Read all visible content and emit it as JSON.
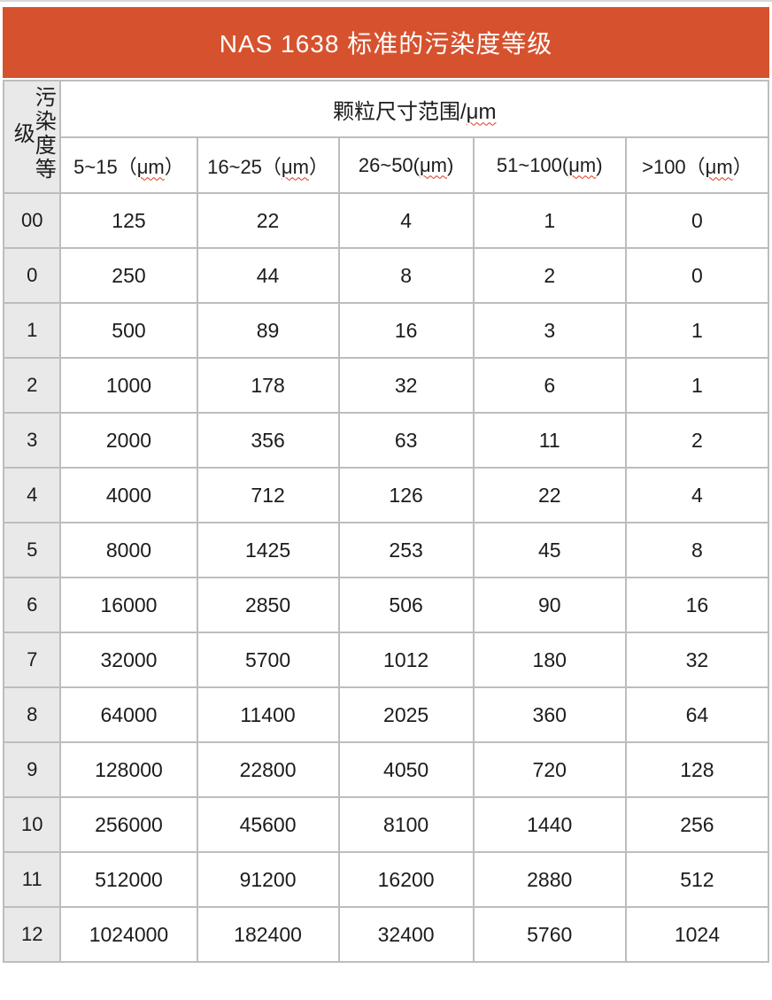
{
  "title": "NAS 1638 标准的污染度等级",
  "colors": {
    "header_bg": "#d6522e",
    "header_text": "#ffffff",
    "label_bg": "#e9e9e9",
    "border": "#bdbdbd",
    "text": "#1c1c1c",
    "squiggle_red": "#e0351f"
  },
  "table": {
    "corner_header": "污染度等级",
    "group_header": {
      "pre": "颗粒尺寸范围/",
      "um": "μm",
      "post": ""
    },
    "size_headers": [
      {
        "pre": "5~15（",
        "um": "μm",
        "post": "）"
      },
      {
        "pre": "16~25（",
        "um": "μm",
        "post": "）"
      },
      {
        "pre": "26~50(",
        "um": "μm",
        "post": ")"
      },
      {
        "pre": "51~100(",
        "um": "μm",
        "post": ")"
      },
      {
        "pre": ">100（",
        "um": "μm",
        "post": "）"
      }
    ],
    "rows": [
      {
        "grade": "00",
        "values": [
          "125",
          "22",
          "4",
          "1",
          "0"
        ]
      },
      {
        "grade": "0",
        "values": [
          "250",
          "44",
          "8",
          "2",
          "0"
        ]
      },
      {
        "grade": "1",
        "values": [
          "500",
          "89",
          "16",
          "3",
          "1"
        ]
      },
      {
        "grade": "2",
        "values": [
          "1000",
          "178",
          "32",
          "6",
          "1"
        ]
      },
      {
        "grade": "3",
        "values": [
          "2000",
          "356",
          "63",
          "11",
          "2"
        ]
      },
      {
        "grade": "4",
        "values": [
          "4000",
          "712",
          "126",
          "22",
          "4"
        ]
      },
      {
        "grade": "5",
        "values": [
          "8000",
          "1425",
          "253",
          "45",
          "8"
        ]
      },
      {
        "grade": "6",
        "values": [
          "16000",
          "2850",
          "506",
          "90",
          "16"
        ]
      },
      {
        "grade": "7",
        "values": [
          "32000",
          "5700",
          "1012",
          "180",
          "32"
        ]
      },
      {
        "grade": "8",
        "values": [
          "64000",
          "11400",
          "2025",
          "360",
          "64"
        ]
      },
      {
        "grade": "9",
        "values": [
          "128000",
          "22800",
          "4050",
          "720",
          "128"
        ]
      },
      {
        "grade": "10",
        "values": [
          "256000",
          "45600",
          "8100",
          "1440",
          "256"
        ]
      },
      {
        "grade": "11",
        "values": [
          "512000",
          "91200",
          "16200",
          "2880",
          "512"
        ]
      },
      {
        "grade": "12",
        "values": [
          "1024000",
          "182400",
          "32400",
          "5760",
          "1024"
        ]
      }
    ]
  }
}
